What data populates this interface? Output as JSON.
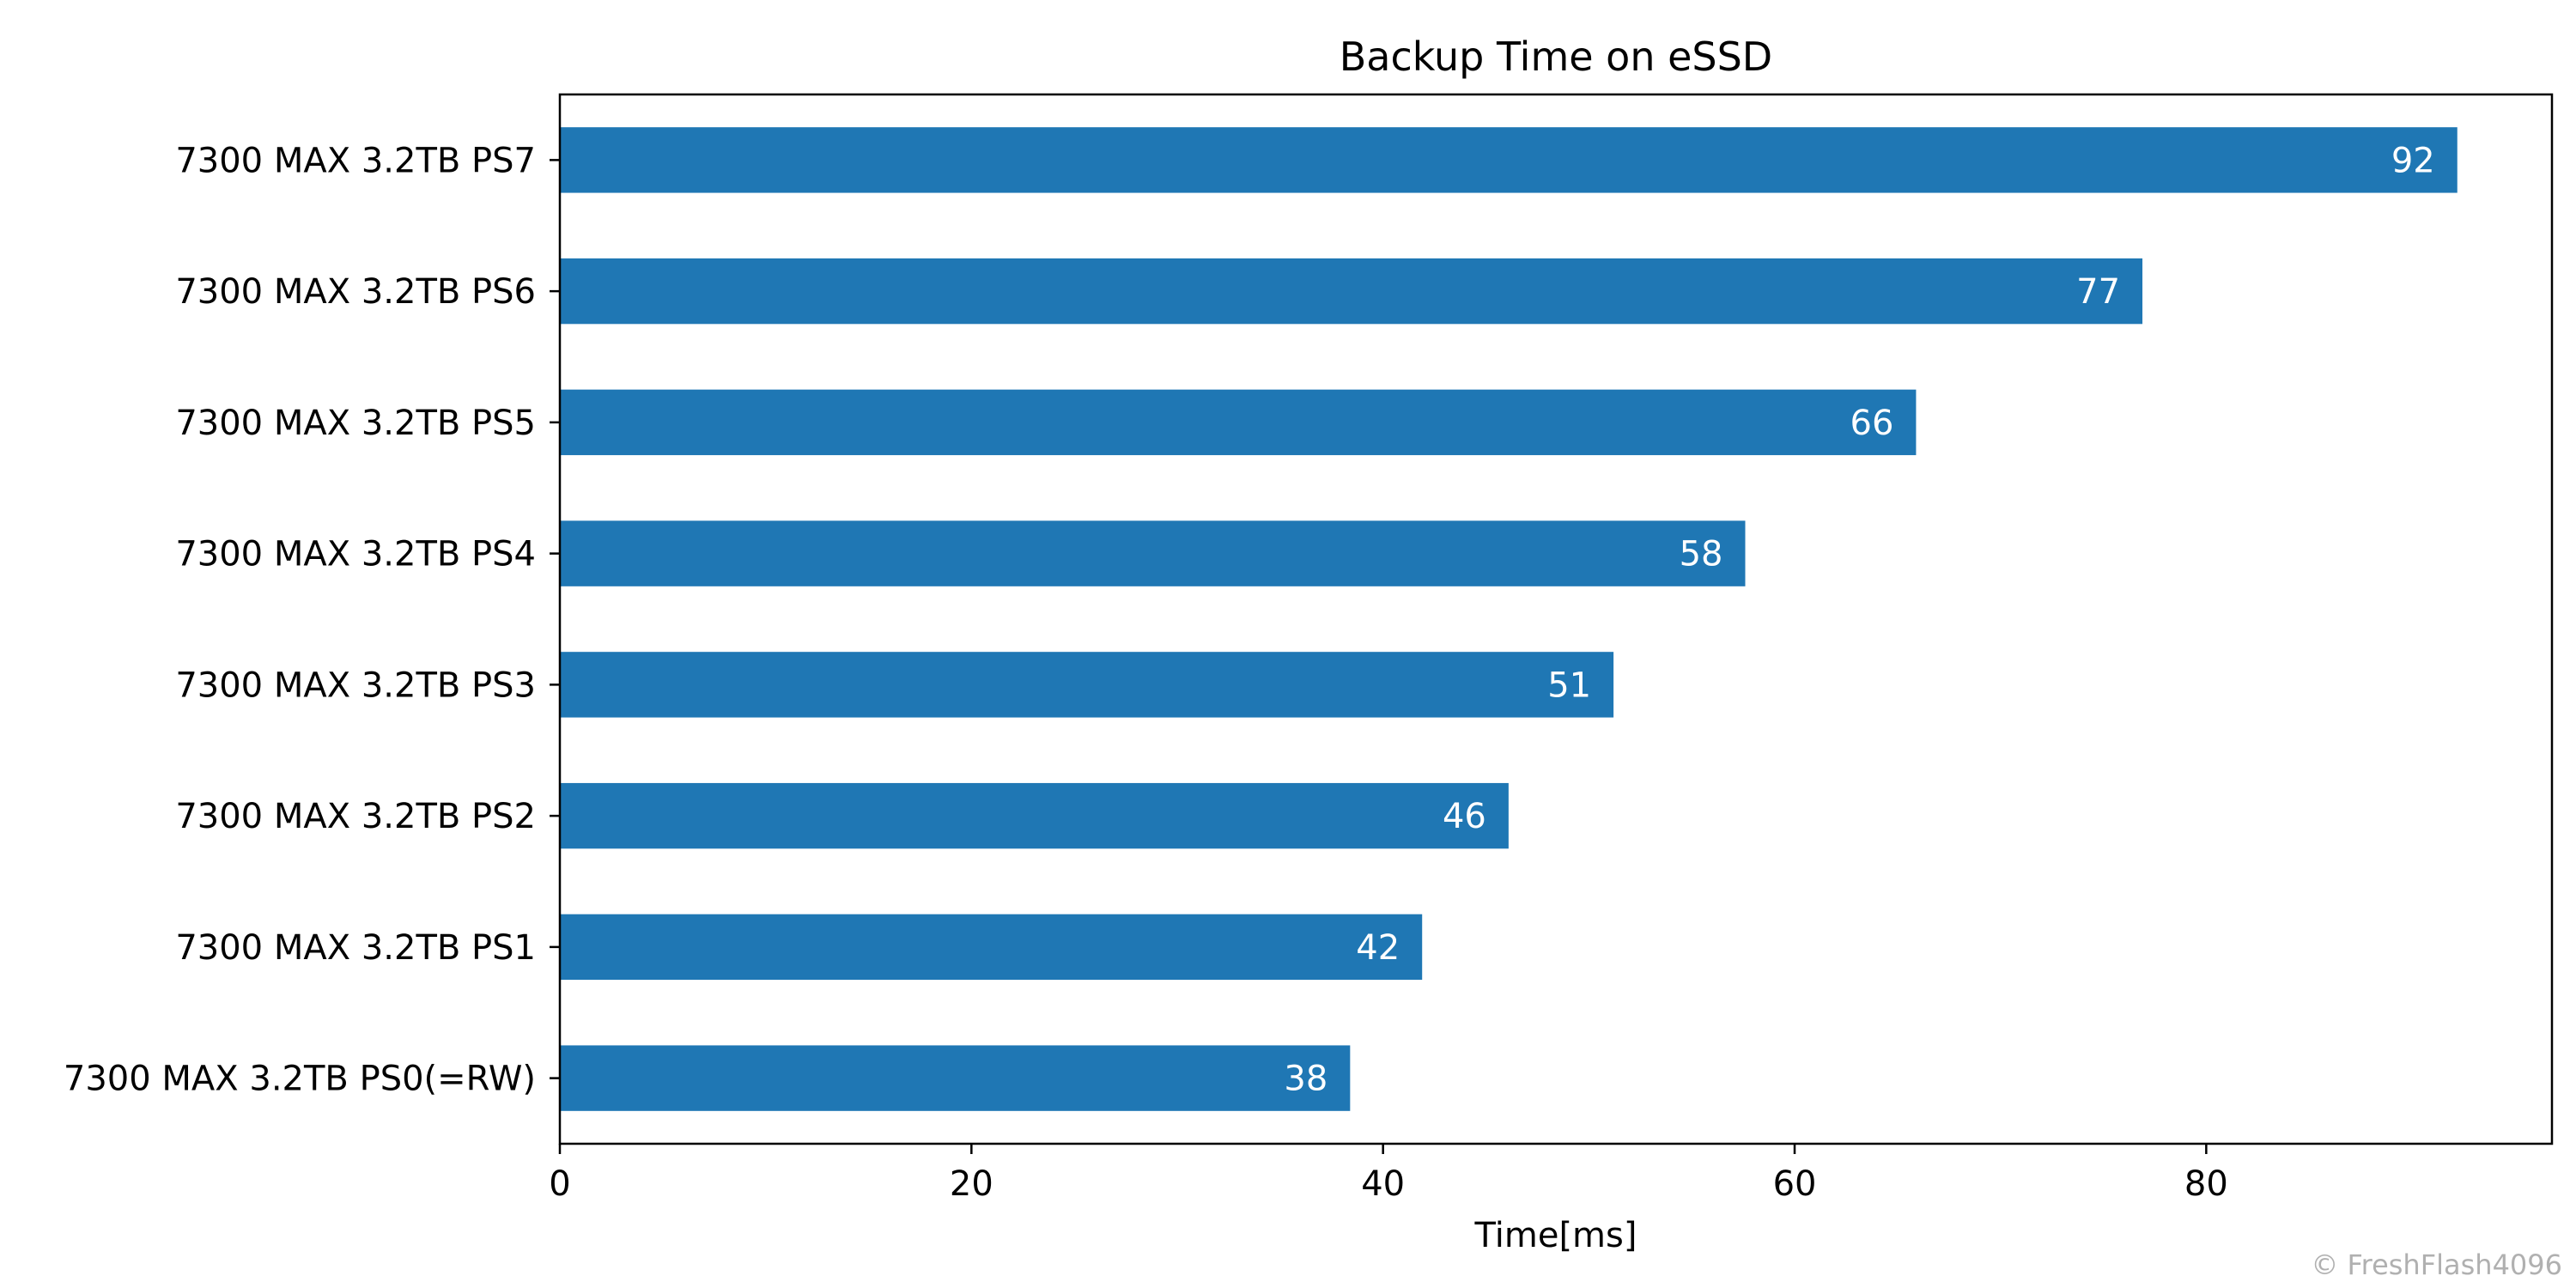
{
  "chart_data": {
    "type": "bar",
    "orientation": "horizontal",
    "title": "Backup Time on eSSD",
    "xlabel": "Time[ms]",
    "ylabel": "",
    "categories": [
      "7300 MAX 3.2TB PS7",
      "7300 MAX 3.2TB PS6",
      "7300 MAX 3.2TB PS5",
      "7300 MAX 3.2TB PS4",
      "7300 MAX 3.2TB PS3",
      "7300 MAX 3.2TB PS2",
      "7300 MAX 3.2TB PS1",
      "7300 MAX 3.2TB PS0(=RW)"
    ],
    "values": [
      92.2,
      76.9,
      65.9,
      57.6,
      51.2,
      46.1,
      41.9,
      38.4
    ],
    "data_labels": [
      "92",
      "77",
      "66",
      "58",
      "51",
      "46",
      "42",
      "38"
    ],
    "xlim": [
      0,
      96.8
    ],
    "xticks": [
      0,
      20,
      40,
      60,
      80
    ],
    "grid": false,
    "bar_color": "#1f77b4"
  },
  "watermark": "© FreshFlash4096"
}
